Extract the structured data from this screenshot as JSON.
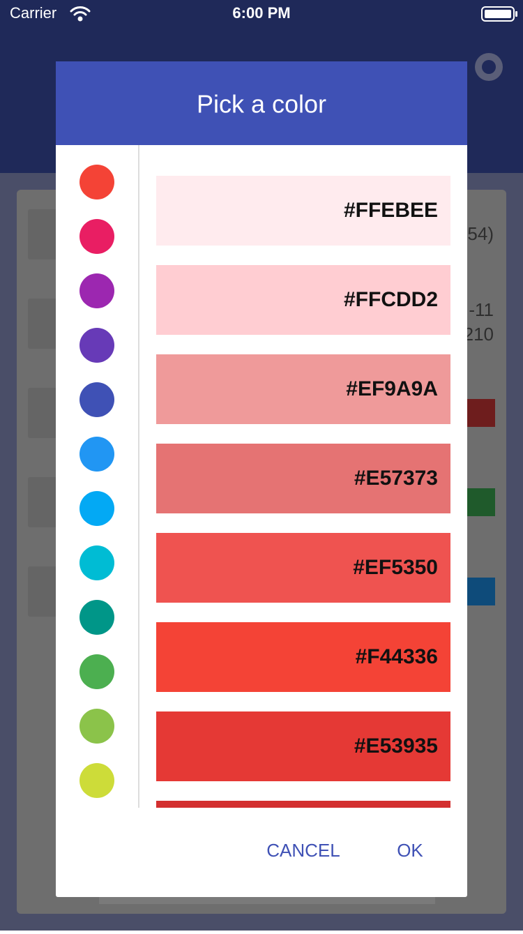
{
  "status_bar": {
    "carrier": "Carrier",
    "time": "6:00 PM"
  },
  "background": {
    "fragments": [
      "54)",
      "-11",
      "210"
    ]
  },
  "dialog": {
    "title": "Pick a color",
    "primary_colors": [
      "#F44336",
      "#E91E63",
      "#9C27B0",
      "#673AB7",
      "#3F51B5",
      "#2196F3",
      "#03A9F4",
      "#00BCD4",
      "#009688",
      "#4CAF50",
      "#8BC34A",
      "#CDDC39"
    ],
    "shades": [
      "#FFEBEE",
      "#FFCDD2",
      "#EF9A9A",
      "#E57373",
      "#EF5350",
      "#F44336",
      "#E53935"
    ],
    "partial_shade_color": "#D32F2F",
    "buttons": {
      "cancel": "CANCEL",
      "ok": "OK"
    }
  }
}
